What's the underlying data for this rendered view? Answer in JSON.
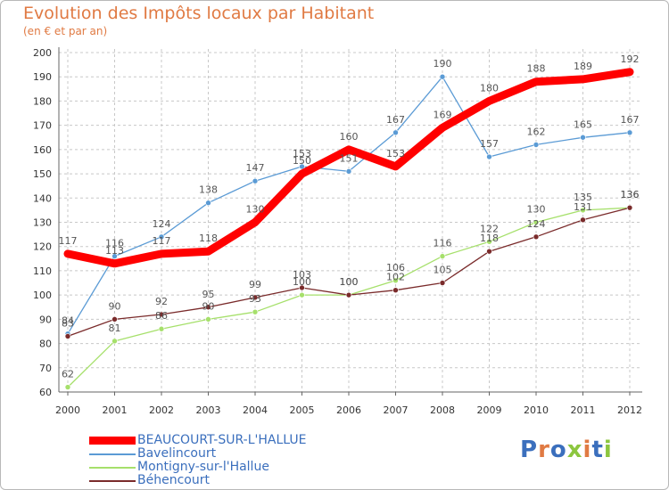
{
  "chart_data": {
    "type": "line",
    "title": "Evolution des Impôts locaux par Habitant",
    "subtitle": "(en € et par an)",
    "xlabel": "",
    "ylabel": "",
    "ylim": [
      60,
      200
    ],
    "yticks": [
      60,
      70,
      80,
      90,
      100,
      110,
      120,
      130,
      140,
      150,
      160,
      170,
      180,
      190,
      200
    ],
    "x": [
      "2000",
      "2001",
      "2002",
      "2003",
      "2004",
      "2005",
      "2006",
      "2007",
      "2008",
      "2009",
      "2010",
      "2011",
      "2012"
    ],
    "grid": true,
    "legend_position": "bottom-left",
    "series": [
      {
        "name": "BEAUCOURT-SUR-L'HALLUE",
        "color": "#ff0000",
        "values": [
          117,
          113,
          117,
          118,
          130,
          150,
          160,
          153,
          169,
          180,
          188,
          189,
          192
        ]
      },
      {
        "name": "Bavelincourt",
        "color": "#5b9bd5",
        "values": [
          84,
          116,
          124,
          138,
          147,
          153,
          151,
          167,
          190,
          157,
          162,
          165,
          167
        ]
      },
      {
        "name": "Montigny-sur-l'Hallue",
        "color": "#a6e06b",
        "values": [
          62,
          81,
          86,
          90,
          93,
          100,
          100,
          106,
          116,
          122,
          130,
          135,
          136
        ]
      },
      {
        "name": "Béhencourt",
        "color": "#7a2b2b",
        "values": [
          83,
          90,
          92,
          95,
          99,
          103,
          100,
          102,
          105,
          118,
          124,
          131,
          136
        ]
      }
    ]
  },
  "brand": {
    "text": "Proxiti",
    "colors": [
      "#3b6fbd",
      "#e07a43",
      "#3b6fbd",
      "#8cc63f",
      "#e07a43",
      "#3b6fbd",
      "#8cc63f"
    ]
  }
}
